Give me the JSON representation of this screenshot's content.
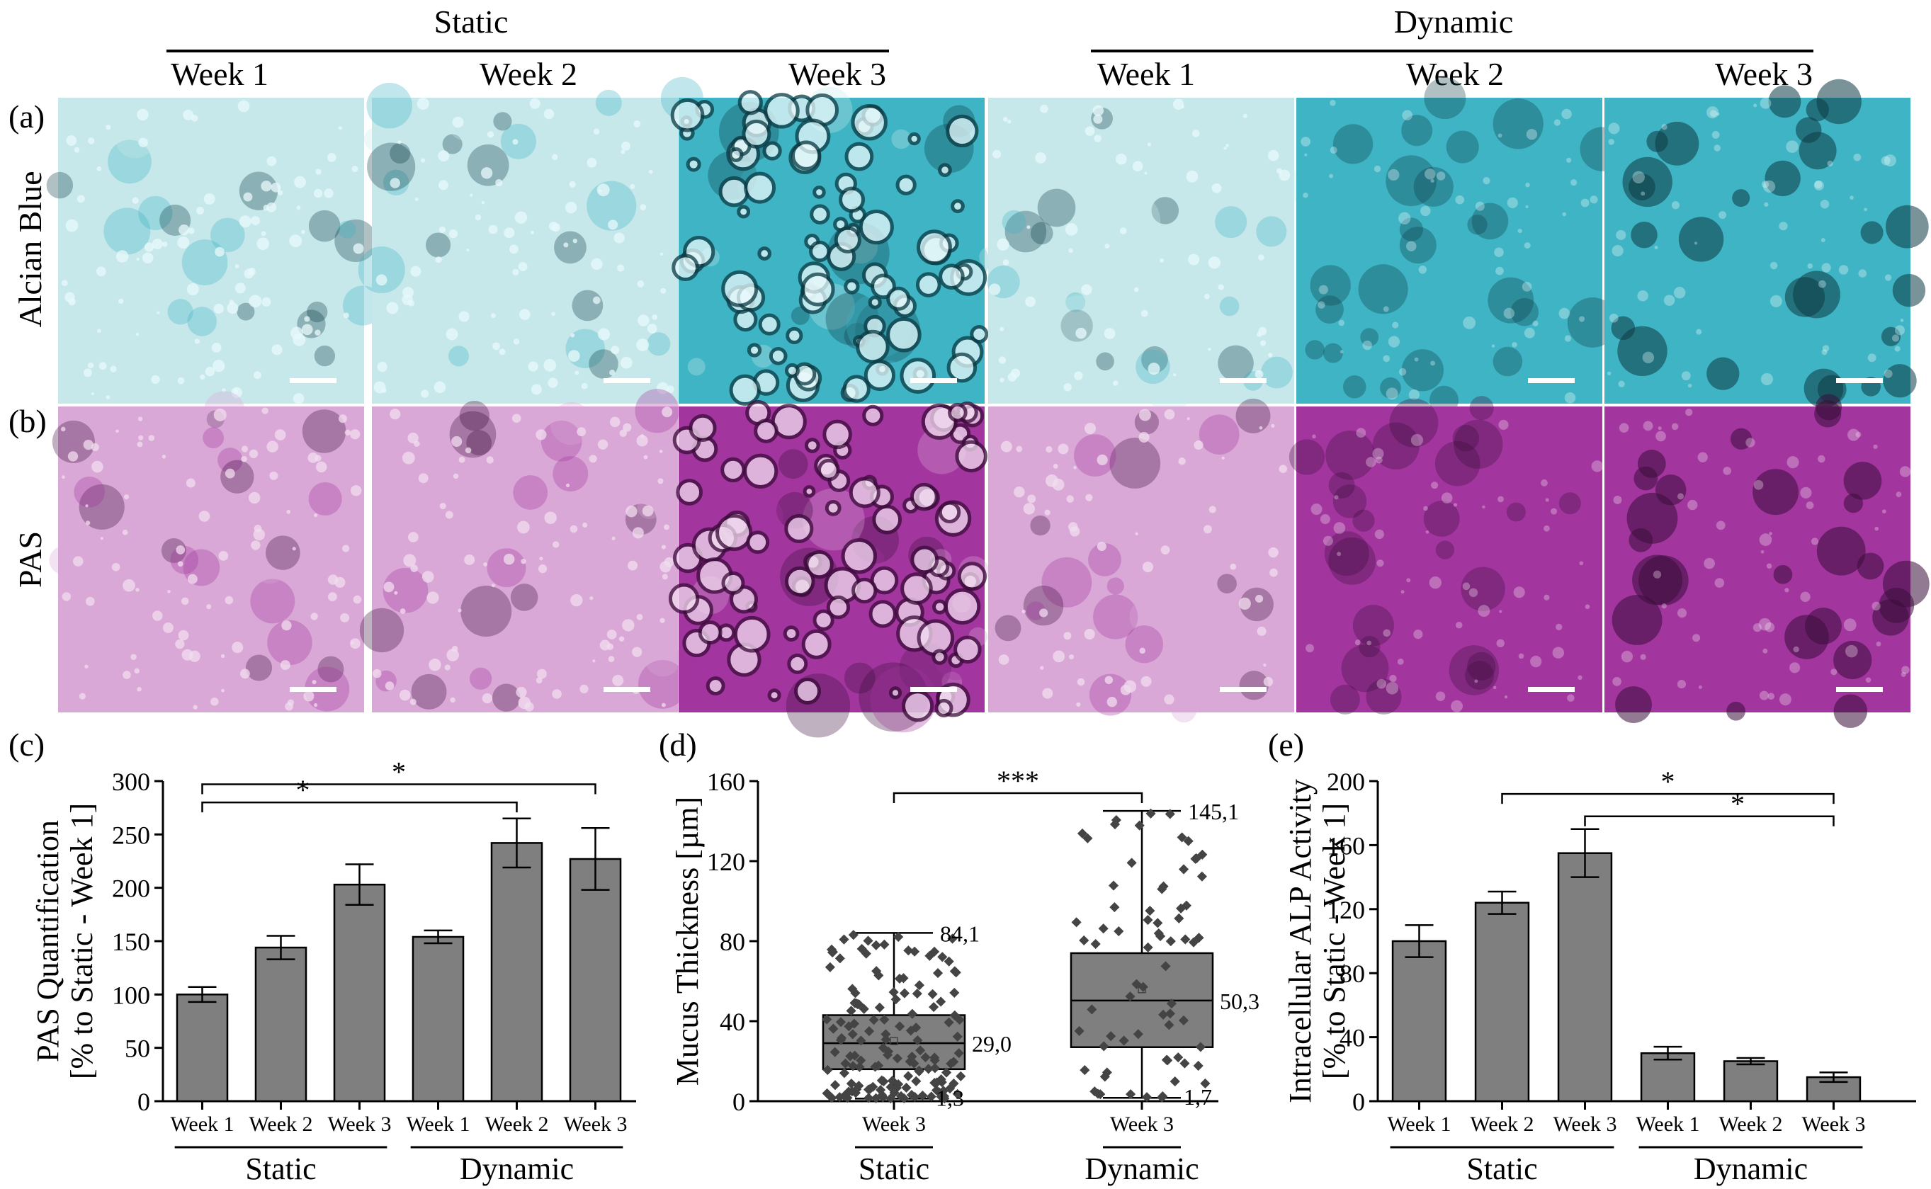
{
  "header": {
    "static": "Static",
    "dynamic": "Dynamic",
    "weeks": [
      "Week 1",
      "Week 2",
      "Week 3",
      "Week 1",
      "Week 2",
      "Week 3"
    ]
  },
  "rows": [
    {
      "panel": "(a)",
      "label": "Alcian Blue",
      "colors": {
        "light": "#c7e8ea",
        "mid": "#3fb4c4",
        "dark": "#0d3b44",
        "spot": "#e8f9fb"
      }
    },
    {
      "panel": "(b)",
      "label": "PAS",
      "colors": {
        "light": "#d9a8d6",
        "mid": "#a3359f",
        "dark": "#3b0d3a",
        "spot": "#f1ddef"
      }
    }
  ],
  "scale_bar_color": "#ffffff",
  "bar_color": "#7f7f7f",
  "chart_data": [
    {
      "panel": "(c)",
      "type": "bar",
      "ylabel_line1": "PAS Quantification",
      "ylabel_line2": "[% to Static - Week 1]",
      "ylim": [
        0,
        300
      ],
      "yticks": [
        0,
        50,
        100,
        150,
        200,
        250,
        300
      ],
      "categories": [
        "Week 1",
        "Week 2",
        "Week 3",
        "Week 1",
        "Week 2",
        "Week 3"
      ],
      "values": [
        100,
        144,
        203,
        154,
        242,
        227
      ],
      "errors": [
        7,
        11,
        19,
        6,
        23,
        29
      ],
      "groups": [
        "Static",
        "Dynamic"
      ],
      "significance": [
        {
          "from": 0,
          "to": 5,
          "label": "*",
          "level": 297
        },
        {
          "from": 0,
          "to": 4,
          "label": "*",
          "level": 280
        }
      ]
    },
    {
      "panel": "(d)",
      "type": "box",
      "ylabel": "Mucus Thickness [µm]",
      "ylim": [
        0,
        160
      ],
      "yticks": [
        0,
        40,
        80,
        120,
        160
      ],
      "categories": [
        "Week 3",
        "Week 3"
      ],
      "groups": [
        "Static",
        "Dynamic"
      ],
      "series": [
        {
          "name": "Static",
          "min": 1.3,
          "q1": 16,
          "median": 29.0,
          "q3": 43,
          "max": 84.1,
          "mean": 30,
          "labels": {
            "max": "84,1",
            "median": "29,0",
            "min": "1,3"
          }
        },
        {
          "name": "Dynamic",
          "min": 1.7,
          "q1": 27,
          "median": 50.3,
          "q3": 74,
          "max": 145.1,
          "mean": 56,
          "labels": {
            "max": "145,1",
            "median": "50,3",
            "min": "1,7"
          }
        }
      ],
      "significance": [
        {
          "from": 0,
          "to": 1,
          "label": "***",
          "level": 154
        }
      ]
    },
    {
      "panel": "(e)",
      "type": "bar",
      "ylabel_line1": "Intracellular ALP Activity",
      "ylabel_line2": "[% to Static - Week 1]",
      "ylim": [
        0,
        200
      ],
      "yticks": [
        0,
        40,
        80,
        120,
        160,
        200
      ],
      "categories": [
        "Week 1",
        "Week 2",
        "Week 3",
        "Week 1",
        "Week 2",
        "Week 3"
      ],
      "values": [
        100,
        124,
        155,
        30,
        25,
        15
      ],
      "errors": [
        10,
        7,
        15,
        4,
        2,
        3
      ],
      "groups": [
        "Static",
        "Dynamic"
      ],
      "significance": [
        {
          "from": 1,
          "to": 5,
          "label": "*",
          "level": 192
        },
        {
          "from": 2,
          "to": 5,
          "label": "*",
          "level": 178
        }
      ]
    }
  ]
}
